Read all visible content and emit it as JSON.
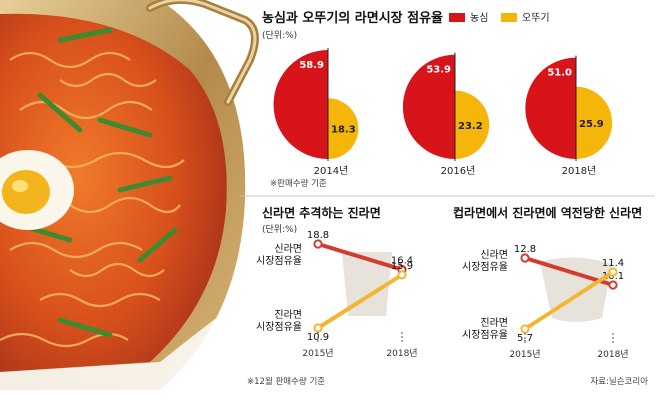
{
  "colors": {
    "nongshim": "#d7141a",
    "ottogi": "#f5b50a",
    "ramen_line": "#d43a2e",
    "jin_line": "#f2b631",
    "cup": "#e3ddd3"
  },
  "top": {
    "title": "농심과 오뚜기의 라면시장 점유율",
    "unit": "(단위:%)",
    "note": "※판매수량 기준",
    "legend": [
      {
        "name": "농심",
        "color": "#d7141a"
      },
      {
        "name": "오뚜기",
        "color": "#f5b50a"
      }
    ]
  },
  "left": {
    "title": "신라면 추격하는 진라면",
    "unit": "(단위:%)",
    "label_a": [
      "신라면",
      "시장점유율"
    ],
    "label_b": [
      "진라면",
      "시장점유율"
    ],
    "note": "※12월 판매수량 기준"
  },
  "right": {
    "title": "컵라면에서 진라면에 역전당한 신라면",
    "label_a": [
      "신라면",
      "시장점유율"
    ],
    "label_b": [
      "진라면",
      "시장점유율"
    ],
    "source": "자료:닐슨코리아"
  },
  "chart_data": [
    {
      "type": "pie",
      "title": "농심과 오뚜기의 라면시장 점유율",
      "unit": "(단위:%)",
      "categories": [
        "2014년",
        "2016년",
        "2018년"
      ],
      "series": [
        {
          "name": "농심",
          "values": [
            58.9,
            53.9,
            51.0
          ],
          "labels": [
            "58.9",
            "53.9",
            "51.0"
          ]
        },
        {
          "name": "오뚜기",
          "values": [
            18.3,
            23.2,
            25.9
          ],
          "labels": [
            "18.3",
            "23.2",
            "25.9"
          ]
        }
      ]
    },
    {
      "type": "line",
      "title": "신라면 추격하는 진라면",
      "unit": "(단위:%)",
      "categories": [
        "2015년",
        "2018년"
      ],
      "series": [
        {
          "name": "신라면 시장점유율",
          "values": [
            18.8,
            16.4
          ],
          "labels": [
            "18.8",
            "16.4"
          ]
        },
        {
          "name": "진라면 시장점유율",
          "values": [
            10.9,
            15.9
          ],
          "labels": [
            "10.9",
            "15.9"
          ]
        }
      ]
    },
    {
      "type": "line",
      "title": "컵라면에서 진라면에 역전당한 신라면",
      "categories": [
        "2015년",
        "2018년"
      ],
      "series": [
        {
          "name": "신라면 시장점유율",
          "values": [
            12.8,
            10.1
          ],
          "labels": [
            "12.8",
            "10.1"
          ]
        },
        {
          "name": "진라면 시장점유율",
          "values": [
            5.7,
            11.4
          ],
          "labels": [
            "5.7",
            "11.4"
          ]
        }
      ]
    }
  ]
}
